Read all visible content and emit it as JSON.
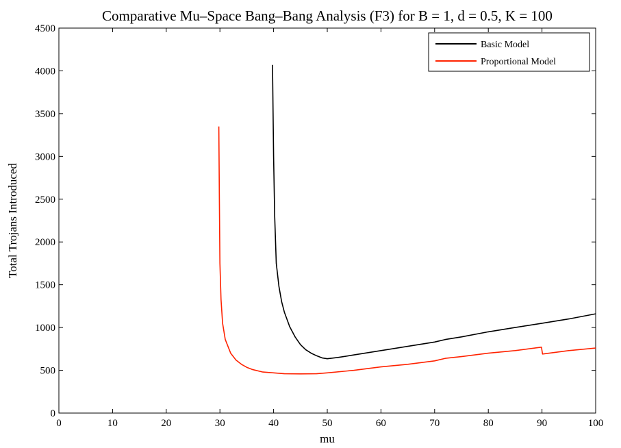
{
  "chart_data": {
    "type": "line",
    "title": "Comparative Mu–Space Bang–Bang Analysis (F3) for B = 1, d = 0.5, K = 100",
    "xlabel": "mu",
    "ylabel": "Total Trojans Introduced",
    "xlim": [
      0,
      100
    ],
    "ylim": [
      0,
      4500
    ],
    "xticks": [
      0,
      10,
      20,
      30,
      40,
      50,
      60,
      70,
      80,
      90,
      100
    ],
    "yticks": [
      0,
      500,
      1000,
      1500,
      2000,
      2500,
      3000,
      3500,
      4000,
      4500
    ],
    "grid": false,
    "legend_position": "top-right",
    "series": [
      {
        "name": "Basic Model",
        "color": "#000000",
        "x": [
          39.8,
          40.0,
          40.2,
          40.5,
          41,
          41.5,
          42,
          43,
          44,
          45,
          46,
          47,
          48,
          49,
          50,
          52,
          55,
          60,
          65,
          70,
          72,
          75,
          80,
          85,
          90,
          95,
          100
        ],
        "y": [
          4070,
          3000,
          2300,
          1750,
          1480,
          1300,
          1180,
          1010,
          890,
          800,
          740,
          700,
          670,
          645,
          635,
          650,
          680,
          730,
          780,
          830,
          860,
          890,
          950,
          1000,
          1050,
          1100,
          1160
        ]
      },
      {
        "name": "Proportional Model",
        "color": "#ff2200",
        "x": [
          29.8,
          29.9,
          30.0,
          30.2,
          30.5,
          31,
          32,
          33,
          34,
          35,
          36,
          38,
          40,
          42,
          45,
          48,
          50,
          55,
          60,
          65,
          70,
          72,
          75,
          80,
          85,
          89.9,
          90.1,
          95,
          100
        ],
        "y": [
          3350,
          2500,
          1750,
          1330,
          1050,
          860,
          700,
          620,
          570,
          535,
          510,
          480,
          470,
          460,
          458,
          460,
          470,
          500,
          540,
          570,
          610,
          640,
          660,
          700,
          730,
          770,
          690,
          730,
          760
        ]
      }
    ]
  }
}
